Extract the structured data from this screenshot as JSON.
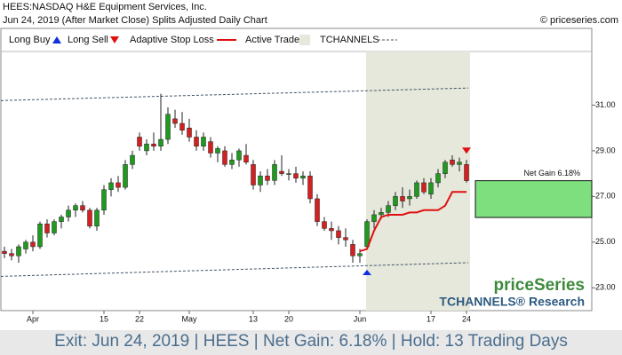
{
  "chart_data": {
    "type": "candlestick",
    "title": "HEES:NASDAQ H&E Equipment Services, Inc.",
    "subtitle": "Jun 24, 2019 (After Market Close)  Splits Adjusted Daily Chart",
    "source": "© priceseries.com",
    "legend": [
      "Long Buy",
      "Long Sell",
      "Adaptive Stop Loss",
      "Active Trade",
      "TCHANNELS"
    ],
    "categories": [
      null,
      null,
      null,
      null,
      "Apr",
      null,
      null,
      null,
      null,
      null,
      null,
      null,
      null,
      null,
      "15",
      null,
      null,
      null,
      null,
      "22",
      null,
      null,
      null,
      null,
      null,
      null,
      "May",
      null,
      null,
      null,
      null,
      null,
      null,
      null,
      null,
      "13",
      null,
      null,
      null,
      null,
      "20",
      null,
      null,
      null,
      null,
      null,
      null,
      null,
      null,
      null,
      "Jun",
      null,
      null,
      null,
      null,
      null,
      null,
      null,
      null,
      null,
      "17",
      null,
      null,
      null,
      null,
      "24"
    ],
    "open": [
      24.6,
      24.5,
      24.4,
      24.7,
      25.0,
      24.8,
      25.8,
      25.4,
      25.9,
      26.1,
      26.4,
      26.6,
      26.4,
      25.7,
      26.4,
      27.3,
      27.6,
      27.4,
      28.4,
      29.6,
      29.0,
      29.3,
      29.2,
      29.5,
      30.4,
      30.2,
      30.0,
      29.6,
      29.2,
      29.4,
      28.9,
      29.0,
      28.4,
      28.6,
      28.8,
      28.4,
      27.5,
      27.9,
      27.7,
      28.1,
      28.0,
      28.0,
      27.8,
      27.9,
      26.9,
      25.9,
      25.6,
      25.5,
      25.2,
      24.9,
      24.4,
      24.8,
      25.9,
      26.2,
      26.3,
      26.6,
      27.0,
      26.9,
      27.0,
      27.6,
      27.1,
      27.6,
      28.0,
      28.6,
      28.4,
      28.4
    ],
    "high": [
      24.8,
      24.7,
      24.9,
      25.1,
      25.3,
      25.9,
      26.0,
      26.0,
      26.2,
      26.6,
      26.7,
      26.8,
      26.5,
      26.5,
      27.5,
      27.8,
      27.9,
      28.6,
      29.0,
      29.8,
      29.5,
      29.8,
      31.5,
      30.9,
      30.8,
      30.7,
      30.4,
      29.9,
      29.8,
      29.6,
      29.2,
      29.2,
      28.9,
      29.1,
      29.3,
      28.6,
      28.1,
      28.2,
      28.6,
      28.8,
      28.2,
      28.3,
      28.1,
      28.1,
      27.1,
      26.1,
      25.9,
      25.7,
      25.6,
      25.1,
      24.7,
      26.0,
      26.4,
      26.5,
      26.8,
      27.2,
      27.4,
      27.3,
      27.7,
      27.8,
      27.8,
      28.2,
      28.6,
      28.8,
      28.7,
      28.6
    ],
    "low": [
      24.3,
      24.2,
      24.1,
      24.5,
      24.6,
      24.7,
      25.2,
      25.3,
      25.6,
      25.9,
      26.1,
      26.3,
      25.6,
      25.5,
      26.2,
      27.0,
      27.2,
      27.3,
      28.2,
      29.0,
      28.8,
      29.0,
      29.0,
      29.3,
      30.0,
      29.7,
      29.4,
      29.0,
      29.0,
      28.7,
      28.5,
      28.3,
      28.2,
      28.3,
      28.4,
      27.3,
      27.2,
      27.5,
      27.5,
      27.9,
      27.7,
      27.6,
      27.5,
      26.7,
      25.7,
      25.5,
      25.1,
      24.9,
      24.8,
      24.1,
      24.1,
      24.7,
      25.6,
      26.0,
      26.1,
      26.4,
      26.5,
      26.6,
      26.9,
      27.1,
      26.9,
      27.4,
      27.8,
      28.3,
      28.1,
      27.6
    ],
    "close": [
      24.5,
      24.4,
      24.8,
      25.0,
      24.8,
      25.8,
      25.4,
      25.9,
      26.1,
      26.4,
      26.6,
      26.4,
      25.7,
      26.4,
      27.3,
      27.6,
      27.4,
      28.4,
      28.8,
      29.2,
      29.3,
      29.2,
      29.5,
      30.6,
      30.2,
      29.9,
      29.6,
      29.2,
      29.6,
      28.9,
      29.1,
      28.4,
      28.6,
      29.0,
      28.5,
      27.5,
      27.9,
      27.7,
      28.4,
      28.0,
      28.0,
      27.8,
      27.9,
      26.9,
      25.9,
      25.6,
      25.5,
      25.2,
      25.1,
      24.4,
      24.5,
      25.9,
      26.2,
      26.3,
      26.6,
      27.0,
      26.8,
      27.0,
      27.6,
      27.2,
      27.6,
      28.0,
      28.5,
      28.4,
      28.5,
      27.69
    ],
    "up_color": "#1f9a1f",
    "down_color": "#d42020",
    "stop": {
      "name": "Adaptive Stop Loss",
      "color": "#e01010",
      "values": [
        null,
        null,
        null,
        null,
        null,
        null,
        null,
        null,
        null,
        null,
        null,
        null,
        null,
        null,
        null,
        null,
        null,
        null,
        null,
        null,
        null,
        null,
        null,
        null,
        null,
        null,
        null,
        null,
        null,
        null,
        null,
        null,
        null,
        null,
        null,
        null,
        null,
        null,
        null,
        null,
        null,
        null,
        null,
        null,
        null,
        null,
        null,
        null,
        null,
        null,
        24.6,
        24.7,
        25.5,
        26.1,
        26.2,
        26.2,
        26.2,
        26.3,
        26.3,
        26.4,
        26.4,
        26.4,
        26.6,
        27.2,
        27.2,
        27.2
      ]
    },
    "channel": {
      "upper": [
        31.2,
        31.75
      ],
      "lower": [
        23.5,
        24.1
      ]
    },
    "trade": {
      "entry": 26.08,
      "exit": 27.69,
      "label": "Net Gain 6.18%"
    },
    "ylim": [
      22.0,
      33.35
    ],
    "yticks": [
      {
        "value": 23,
        "label": "23.00"
      },
      {
        "value": 25,
        "label": "25.00"
      },
      {
        "value": 27,
        "label": "27.00"
      },
      {
        "value": 29,
        "label": "29.00"
      },
      {
        "value": 31,
        "label": "31.00"
      }
    ],
    "watermark": "priceSeries",
    "brand": "TCHANNELS® Research",
    "footer": "Exit: Jun 24, 2019 | HEES | Net Gain: 6.18% | Hold: 13 Trading Days"
  }
}
